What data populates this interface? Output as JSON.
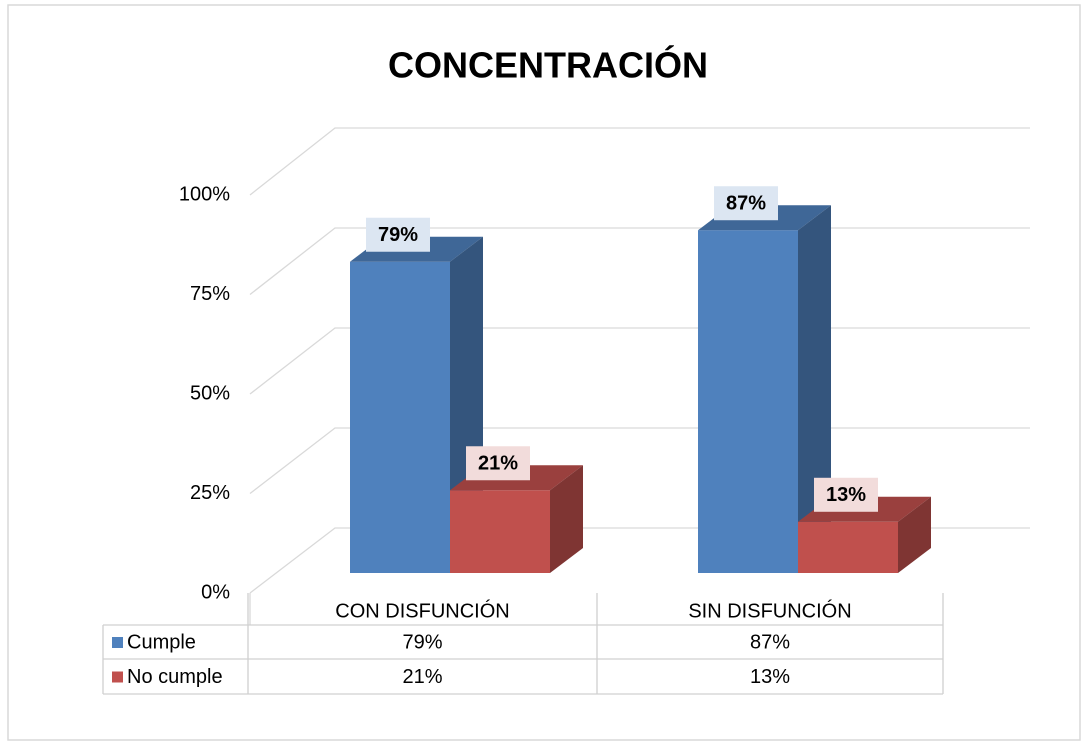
{
  "chart_data": {
    "type": "bar3d",
    "title": "CONCENTRACIÓN",
    "categories": [
      "CON DISFUNCIÓN",
      "SIN DISFUNCIÓN"
    ],
    "series": [
      {
        "name": "Cumple",
        "color": "#4f81bd",
        "values": [
          79,
          87
        ],
        "value_labels": [
          "79%",
          "87%"
        ]
      },
      {
        "name": "No cumple",
        "color": "#c0504d",
        "values": [
          21,
          13
        ],
        "value_labels": [
          "21%",
          "13%"
        ]
      }
    ],
    "ylim": [
      0,
      100
    ],
    "yticks": [
      {
        "value": 0,
        "label": "0%"
      },
      {
        "value": 25,
        "label": "25%"
      },
      {
        "value": 50,
        "label": "50%"
      },
      {
        "value": 75,
        "label": "75%"
      },
      {
        "value": 100,
        "label": "100%"
      }
    ],
    "grid": true,
    "legend": "table"
  }
}
